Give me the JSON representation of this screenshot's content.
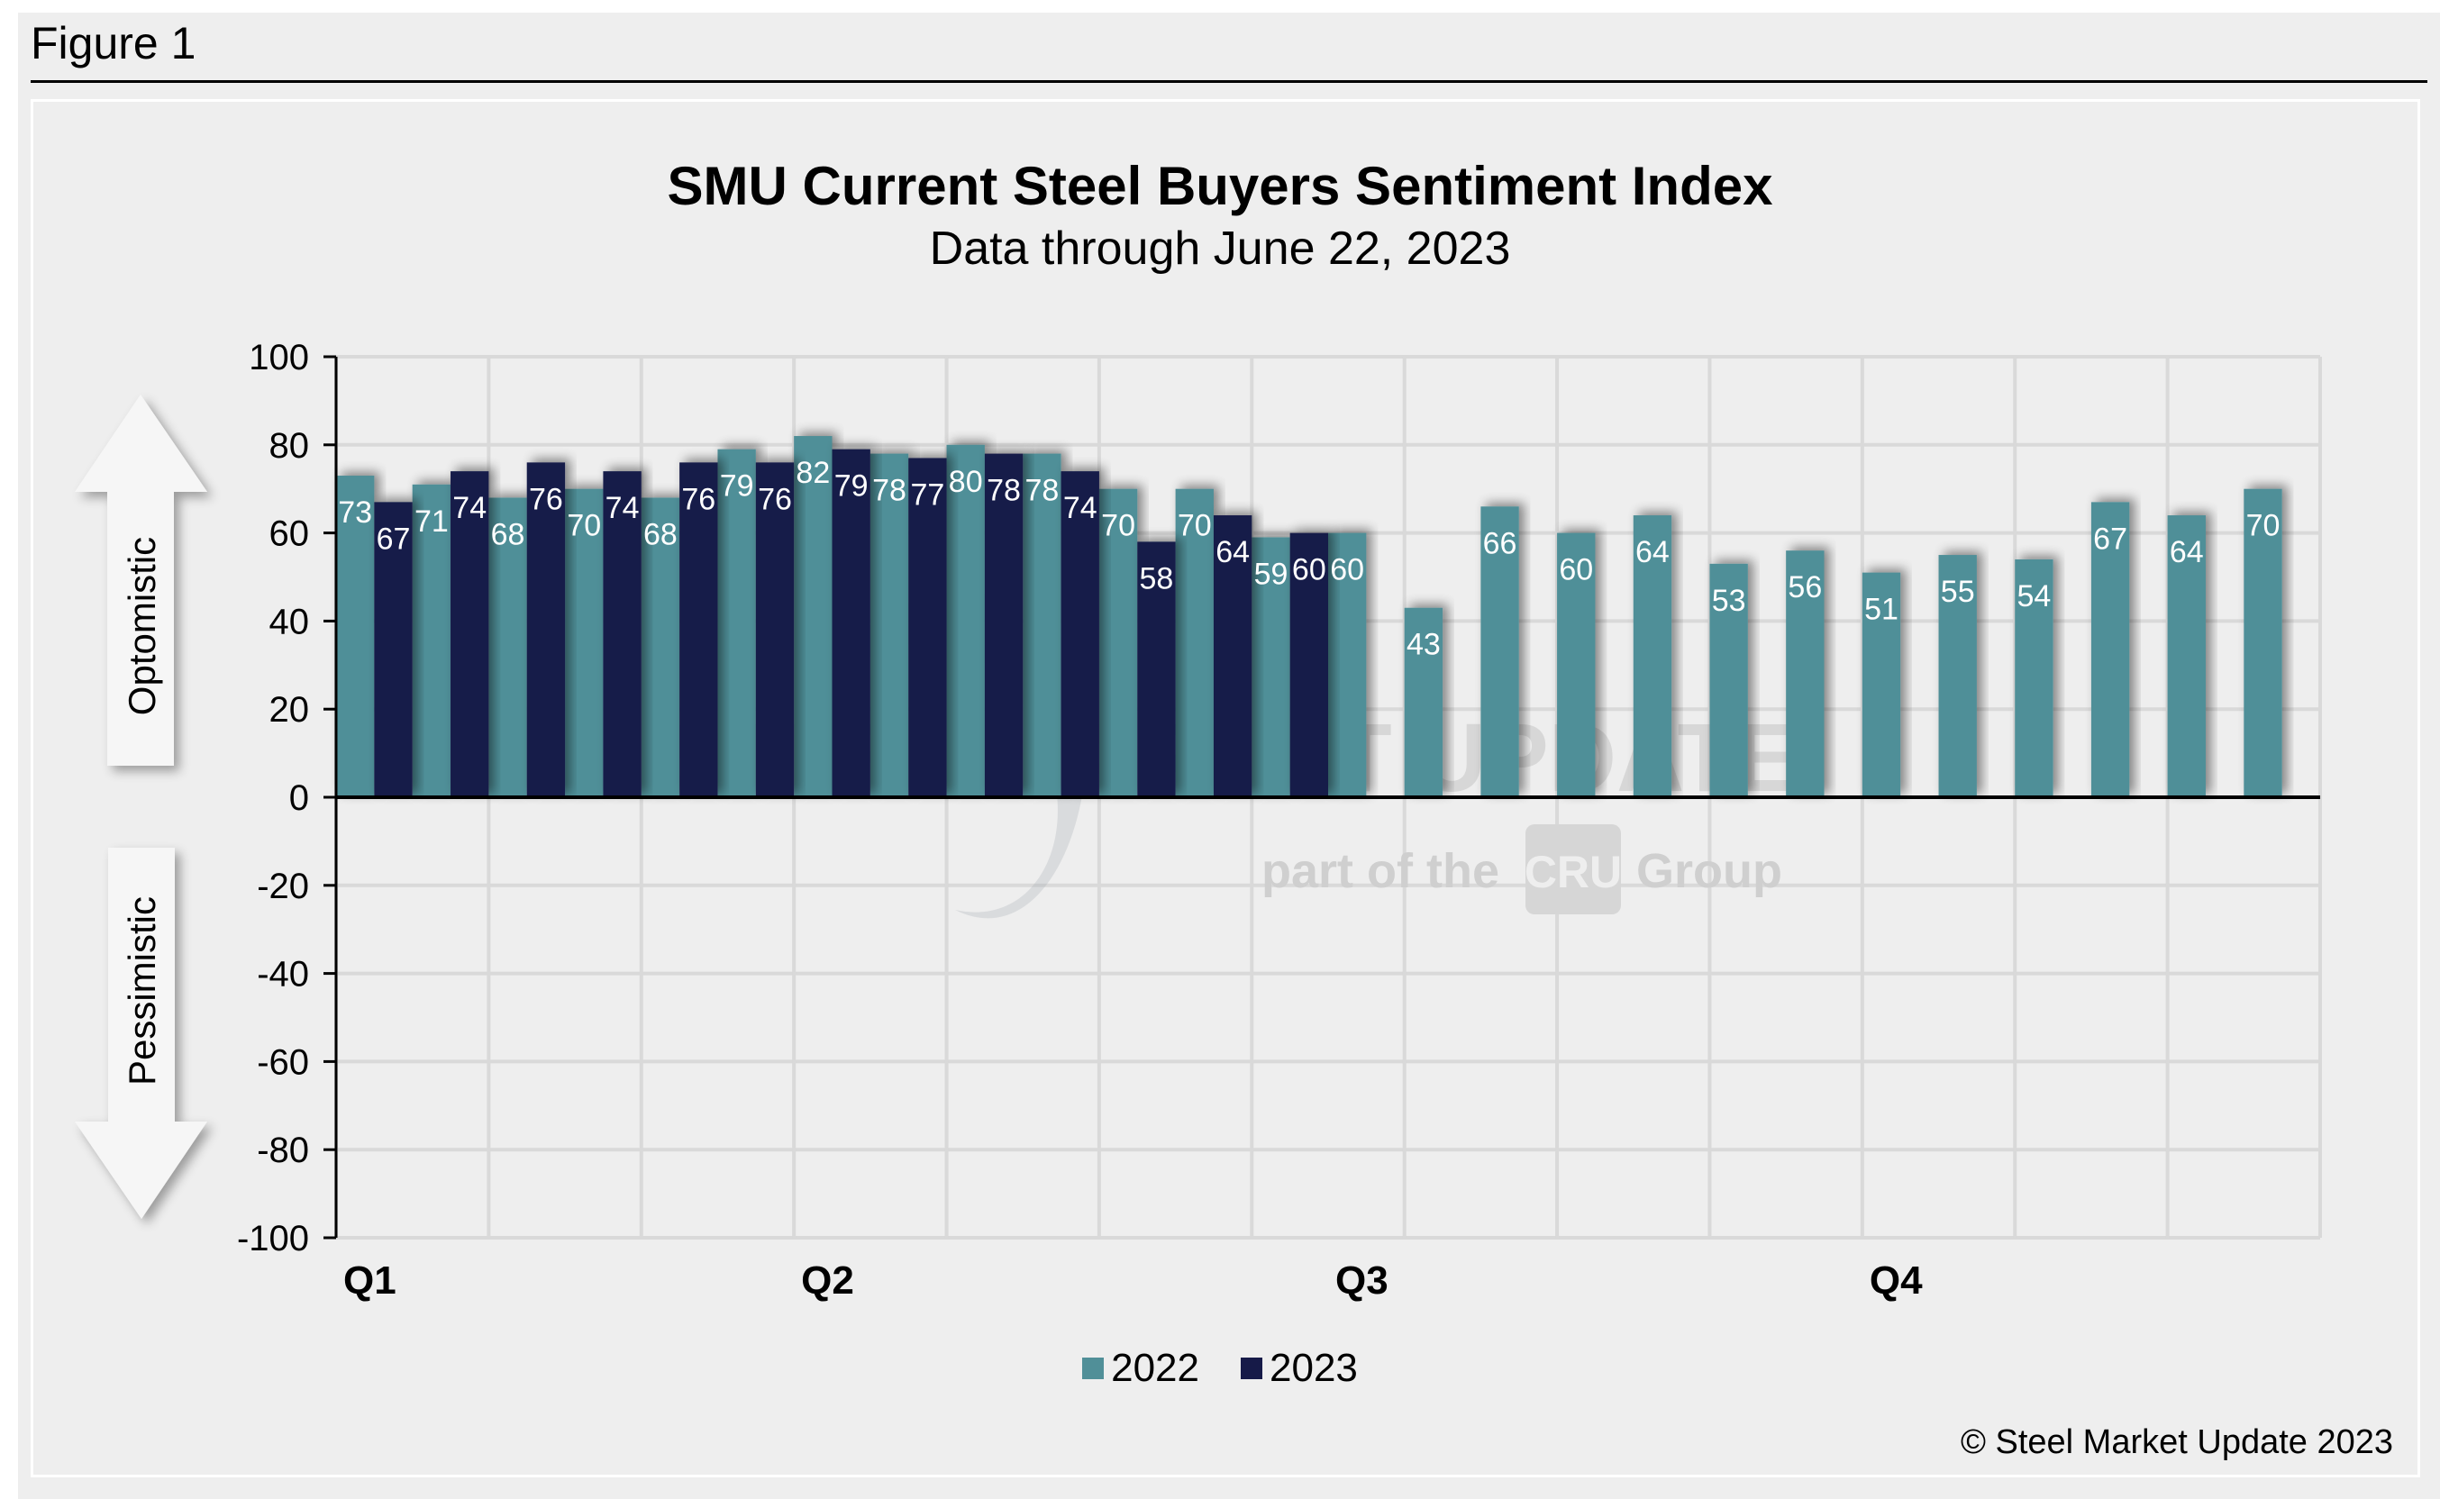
{
  "figure_label": "Figure 1",
  "colors": {
    "series_2022": "#508f98",
    "series_2023": "#161a48",
    "background": "#eeeeee",
    "gridline": "#d9d9d9",
    "data_label": "#ffffff"
  },
  "watermark": {
    "brand": "STEEL MARKET UPDATE",
    "tagline_prefix": "part of the",
    "tagline_logo": "CRU",
    "tagline_suffix": "Group"
  },
  "arrows": {
    "up_label": "Optomistic",
    "down_label": "Pessimistic"
  },
  "copyright": "© Steel Market Update 2023",
  "chart_data": {
    "type": "bar",
    "title": "SMU Current Steel Buyers Sentiment Index",
    "subtitle": "Data through June 22, 2023",
    "xlabel": "",
    "ylabel": "",
    "ylim": [
      -100,
      100
    ],
    "yticks": [
      100,
      80,
      60,
      40,
      20,
      0,
      -20,
      -40,
      -60,
      -80,
      -100
    ],
    "grid": true,
    "legend_position": "bottom-center",
    "quarter_labels": [
      {
        "label": "Q1",
        "period_index": 0
      },
      {
        "label": "Q2",
        "period_index": 6
      },
      {
        "label": "Q3",
        "period_index": 13
      },
      {
        "label": "Q4",
        "period_index": 20
      }
    ],
    "period_count": 26,
    "series": [
      {
        "name": "2022",
        "values": [
          73,
          71,
          68,
          70,
          68,
          79,
          82,
          78,
          80,
          78,
          70,
          70,
          59,
          60,
          43,
          66,
          60,
          64,
          53,
          56,
          51,
          55,
          54,
          67,
          64,
          70
        ]
      },
      {
        "name": "2023",
        "values": [
          67,
          74,
          76,
          74,
          76,
          76,
          79,
          77,
          78,
          74,
          58,
          64,
          60
        ]
      }
    ]
  }
}
